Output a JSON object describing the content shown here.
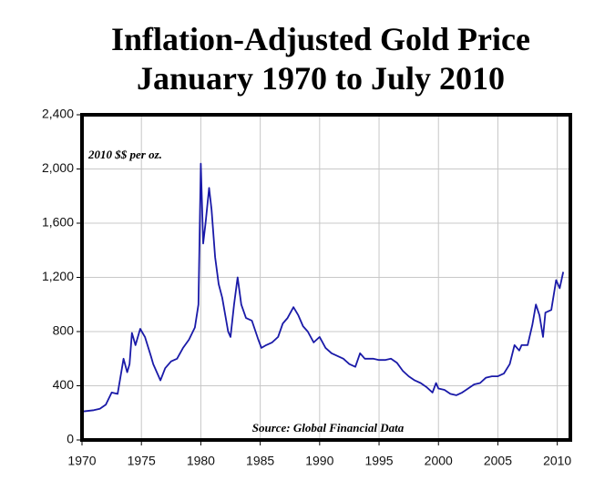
{
  "chart_data": {
    "type": "line",
    "title": "Inflation-Adjusted Gold Price",
    "subtitle": "January 1970 to July 2010",
    "annotations": [
      "2010 $$ per oz.",
      "Source: Global Financial Data"
    ],
    "x": [
      1970,
      1971,
      1971.5,
      1972,
      1972.5,
      1973,
      1973.5,
      1973.8,
      1974,
      1974.2,
      1974.5,
      1974.9,
      1975.3,
      1975.8,
      1976,
      1976.6,
      1977,
      1977.5,
      1978,
      1978.5,
      1979,
      1979.5,
      1979.8,
      1980,
      1980.2,
      1980.4,
      1980.7,
      1980.9,
      1981.2,
      1981.5,
      1981.8,
      1982.3,
      1982.5,
      1982.8,
      1983.1,
      1983.4,
      1983.8,
      1984.3,
      1984.8,
      1985.1,
      1985.5,
      1986,
      1986.5,
      1986.9,
      1987.3,
      1987.8,
      1988.2,
      1988.6,
      1989,
      1989.5,
      1990,
      1990.5,
      1991,
      1991.5,
      1992,
      1992.5,
      1993,
      1993.4,
      1993.8,
      1994.5,
      1995,
      1995.5,
      1996,
      1996.5,
      1997,
      1997.5,
      1998,
      1998.5,
      1999,
      1999.5,
      1999.8,
      2000,
      2000.5,
      2001,
      2001.5,
      2002,
      2002.5,
      2003,
      2003.5,
      2004,
      2004.5,
      2005,
      2005.5,
      2006,
      2006.4,
      2006.8,
      2007,
      2007.5,
      2007.9,
      2008.2,
      2008.5,
      2008.8,
      2009,
      2009.5,
      2009.9,
      2010.2,
      2010.5
    ],
    "series": [
      {
        "color": "#1a1aa8",
        "values": [
          210,
          220,
          230,
          260,
          350,
          340,
          600,
          500,
          560,
          790,
          700,
          820,
          760,
          620,
          560,
          440,
          530,
          580,
          600,
          680,
          740,
          830,
          1000,
          2040,
          1450,
          1600,
          1860,
          1700,
          1350,
          1150,
          1050,
          800,
          760,
          1000,
          1200,
          1000,
          900,
          880,
          750,
          680,
          700,
          720,
          760,
          860,
          900,
          980,
          920,
          840,
          800,
          720,
          760,
          680,
          640,
          620,
          600,
          560,
          540,
          640,
          600,
          600,
          590,
          590,
          600,
          570,
          510,
          470,
          440,
          420,
          390,
          350,
          420,
          380,
          370,
          340,
          330,
          350,
          380,
          410,
          420,
          460,
          470,
          470,
          490,
          560,
          700,
          660,
          700,
          700,
          850,
          1000,
          920,
          760,
          940,
          960,
          1180,
          1120,
          1240
        ]
      }
    ],
    "xlim": [
      1970,
      2011.1
    ],
    "ylim": [
      0,
      2400
    ],
    "xticks": [
      1970,
      1975,
      1980,
      1985,
      1990,
      1995,
      2000,
      2005,
      2010
    ],
    "yticks": [
      0,
      400,
      800,
      {
        "value": 1200,
        "label": "1,200"
      },
      {
        "value": 1600,
        "label": "1,600"
      },
      {
        "value": 2000,
        "label": "2,000"
      },
      {
        "value": 2400,
        "label": "2,400"
      }
    ],
    "grid": true
  }
}
